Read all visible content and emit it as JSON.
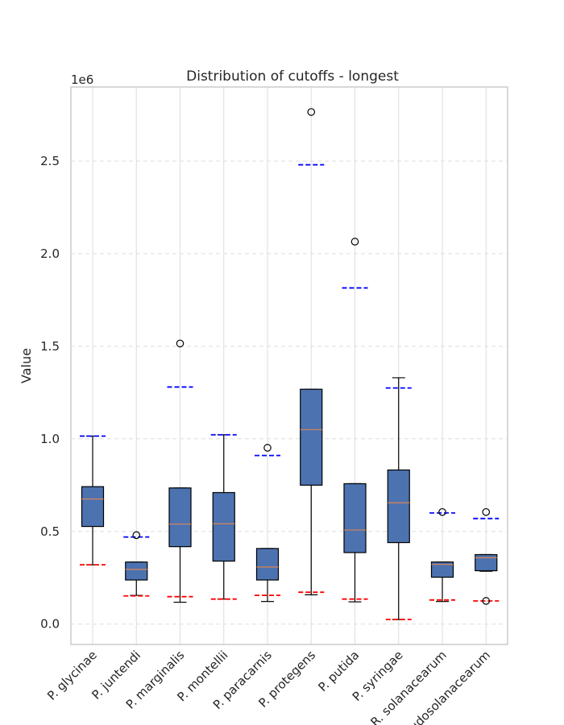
{
  "chart_data": {
    "type": "box",
    "title": "Distribution of cutoffs - longest",
    "xlabel": "",
    "ylabel": "Value",
    "y_multiplier_label": "1e6",
    "ylim": [
      -110000,
      2900000
    ],
    "yticks": [
      0.0,
      0.5,
      1.0,
      1.5,
      2.0,
      2.5
    ],
    "ytick_labels": [
      "0.0",
      "0.5",
      "1.0",
      "1.5",
      "2.0",
      "2.5"
    ],
    "y_scale_factor": 1000000,
    "grid": true,
    "categories": [
      "P. glycinae",
      "P. juntendi",
      "P. marginalis",
      "P. montellii",
      "P. paracarnis",
      "P. protegens",
      "P. putida",
      "P. syringae",
      "R. solanacearum",
      "R. pseudosolanacearum"
    ],
    "series": [
      {
        "whisker_low": 320000,
        "q1": 527000,
        "median": 675000,
        "q3": 742000,
        "whisker_high": 1015000,
        "outliers": [],
        "red_line": 320000,
        "blue_line": 1015000
      },
      {
        "whisker_low": 155000,
        "q1": 238000,
        "median": 295000,
        "q3": 335000,
        "whisker_high": 335000,
        "outliers": [
          480000
        ],
        "red_line": 152000,
        "blue_line": 470000
      },
      {
        "whisker_low": 118000,
        "q1": 418000,
        "median": 540000,
        "q3": 735000,
        "whisker_high": 735000,
        "outliers": [
          1515000
        ],
        "red_line": 148000,
        "blue_line": 1280000
      },
      {
        "whisker_low": 135000,
        "q1": 340000,
        "median": 542000,
        "q3": 710000,
        "whisker_high": 1022000,
        "outliers": [],
        "red_line": 135000,
        "blue_line": 1022000
      },
      {
        "whisker_low": 122000,
        "q1": 238000,
        "median": 308000,
        "q3": 408000,
        "whisker_high": 408000,
        "outliers": [
          952000
        ],
        "red_line": 155000,
        "blue_line": 910000
      },
      {
        "whisker_low": 158000,
        "q1": 750000,
        "median": 1050000,
        "q3": 1268000,
        "whisker_high": 1268000,
        "outliers": [
          2765000
        ],
        "red_line": 172000,
        "blue_line": 2480000
      },
      {
        "whisker_low": 120000,
        "q1": 386000,
        "median": 508000,
        "q3": 758000,
        "whisker_high": 758000,
        "outliers": [
          2065000
        ],
        "red_line": 135000,
        "blue_line": 1815000
      },
      {
        "whisker_low": 25000,
        "q1": 440000,
        "median": 655000,
        "q3": 832000,
        "whisker_high": 1330000,
        "outliers": [],
        "red_line": 25000,
        "blue_line": 1275000
      },
      {
        "whisker_low": 122000,
        "q1": 253000,
        "median": 322000,
        "q3": 335000,
        "whisker_high": 335000,
        "outliers": [
          605000
        ],
        "red_line": 130000,
        "blue_line": 600000
      },
      {
        "whisker_low": 285000,
        "q1": 288000,
        "median": 358000,
        "q3": 375000,
        "whisker_high": 375000,
        "outliers": [
          605000,
          125000
        ],
        "red_line": 125000,
        "blue_line": 570000
      }
    ],
    "colors": {
      "box_fill": "#4c72b0",
      "box_edge": "#000000",
      "median": "#dd8452",
      "red_line": "#ff0000",
      "blue_line": "#0000ff",
      "grid": "#dddddd",
      "frame": "#cccccc",
      "text": "#262626"
    }
  }
}
